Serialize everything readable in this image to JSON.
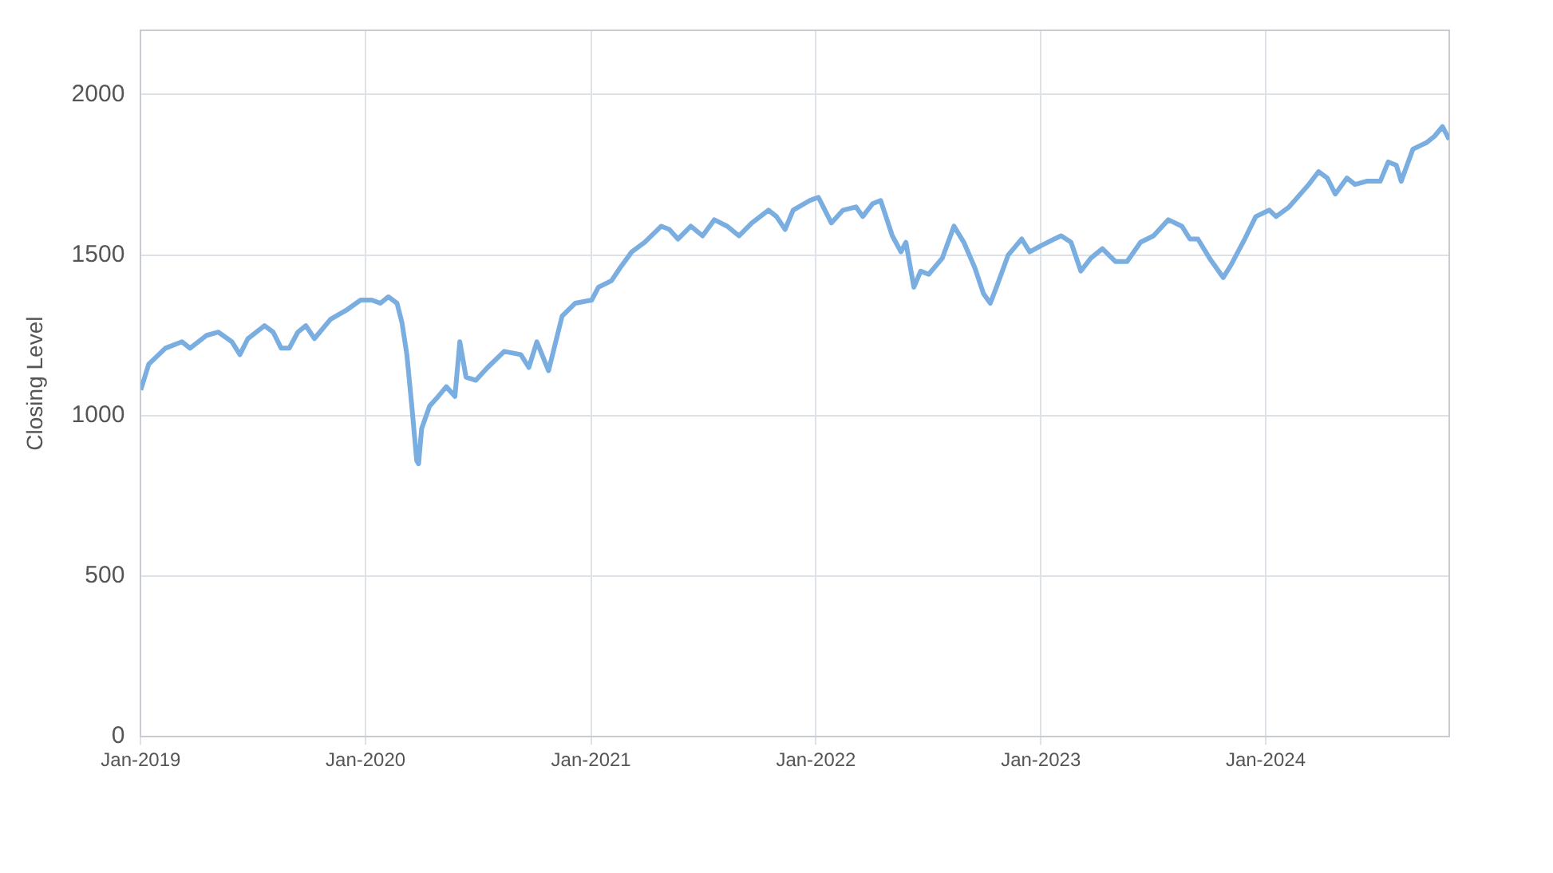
{
  "chart_data": {
    "type": "line",
    "ylabel": "Closing Level",
    "xlim": [
      "2019-01-01",
      "2024-10-25"
    ],
    "xticks": [
      {
        "value": "2019-01",
        "label": "Jan-2019"
      },
      {
        "value": "2020-01",
        "label": "Jan-2020"
      },
      {
        "value": "2021-01",
        "label": "Jan-2021"
      },
      {
        "value": "2022-01",
        "label": "Jan-2022"
      },
      {
        "value": "2023-01",
        "label": "Jan-2023"
      },
      {
        "value": "2024-01",
        "label": "Jan-2024"
      }
    ],
    "ylim": [
      0,
      2200
    ],
    "yticks": [
      0,
      500,
      1000,
      1500,
      2000
    ],
    "grid": true,
    "legend": false,
    "marker": "none",
    "line_style": "solid",
    "x": [
      "2019-01-01",
      "2019-01-14",
      "2019-02-10",
      "2019-03-09",
      "2019-03-22",
      "2019-04-18",
      "2019-05-07",
      "2019-05-29",
      "2019-06-11",
      "2019-06-24",
      "2019-07-21",
      "2019-08-04",
      "2019-08-17",
      "2019-08-30",
      "2019-09-13",
      "2019-09-26",
      "2019-10-10",
      "2019-11-05",
      "2019-12-02",
      "2019-12-24",
      "2020-01-11",
      "2020-01-25",
      "2020-02-07",
      "2020-02-21",
      "2020-02-29",
      "2020-03-08",
      "2020-03-16",
      "2020-03-24",
      "2020-03-27",
      "2020-04-01",
      "2020-04-14",
      "2020-04-28",
      "2020-05-11",
      "2020-05-25",
      "2020-06-02",
      "2020-06-12",
      "2020-06-28",
      "2020-07-17",
      "2020-08-13",
      "2020-09-09",
      "2020-09-22",
      "2020-10-05",
      "2020-10-24",
      "2020-11-15",
      "2020-12-06",
      "2021-01-02",
      "2021-01-13",
      "2021-02-03",
      "2021-02-17",
      "2021-03-08",
      "2021-03-29",
      "2021-04-25",
      "2021-05-08",
      "2021-05-22",
      "2021-06-12",
      "2021-07-01",
      "2021-07-20",
      "2021-08-10",
      "2021-08-29",
      "2021-09-19",
      "2021-10-16",
      "2021-10-29",
      "2021-11-12",
      "2021-11-25",
      "2021-12-22",
      "2022-01-05",
      "2022-01-26",
      "2022-02-14",
      "2022-03-07",
      "2022-03-18",
      "2022-04-03",
      "2022-04-16",
      "2022-05-05",
      "2022-05-19",
      "2022-05-27",
      "2022-06-09",
      "2022-06-20",
      "2022-07-03",
      "2022-07-25",
      "2022-08-13",
      "2022-08-29",
      "2022-09-16",
      "2022-09-30",
      "2022-10-11",
      "2022-10-21",
      "2022-11-09",
      "2022-12-01",
      "2022-12-14",
      "2023-01-02",
      "2023-01-23",
      "2023-02-03",
      "2023-02-19",
      "2023-03-07",
      "2023-03-23",
      "2023-04-11",
      "2023-05-02",
      "2023-05-21",
      "2023-06-12",
      "2023-07-03",
      "2023-07-27",
      "2023-08-18",
      "2023-08-31",
      "2023-09-13",
      "2023-10-02",
      "2023-10-24",
      "2023-11-06",
      "2023-11-28",
      "2023-12-16",
      "2024-01-07",
      "2024-01-18",
      "2024-02-08",
      "2024-03-11",
      "2024-03-27",
      "2024-04-10",
      "2024-04-23",
      "2024-05-12",
      "2024-05-25",
      "2024-06-13",
      "2024-07-05",
      "2024-07-18",
      "2024-07-31",
      "2024-08-08",
      "2024-08-27",
      "2024-09-18",
      "2024-10-01",
      "2024-10-14",
      "2024-10-25"
    ],
    "series": [
      {
        "color": "#7aaee0",
        "values": [
          1080,
          1160,
          1210,
          1230,
          1210,
          1250,
          1260,
          1230,
          1190,
          1240,
          1280,
          1260,
          1210,
          1210,
          1260,
          1280,
          1240,
          1300,
          1330,
          1360,
          1360,
          1350,
          1370,
          1350,
          1290,
          1190,
          1030,
          860,
          850,
          960,
          1030,
          1060,
          1090,
          1060,
          1230,
          1120,
          1110,
          1150,
          1200,
          1190,
          1150,
          1230,
          1140,
          1310,
          1350,
          1360,
          1400,
          1420,
          1460,
          1510,
          1540,
          1590,
          1580,
          1550,
          1590,
          1560,
          1610,
          1590,
          1560,
          1600,
          1640,
          1620,
          1580,
          1640,
          1670,
          1680,
          1600,
          1640,
          1650,
          1620,
          1660,
          1670,
          1560,
          1510,
          1540,
          1400,
          1450,
          1440,
          1490,
          1590,
          1540,
          1460,
          1380,
          1350,
          1400,
          1500,
          1550,
          1510,
          1530,
          1550,
          1560,
          1540,
          1450,
          1490,
          1520,
          1480,
          1480,
          1540,
          1560,
          1610,
          1590,
          1550,
          1550,
          1490,
          1430,
          1470,
          1550,
          1620,
          1640,
          1620,
          1650,
          1720,
          1760,
          1740,
          1690,
          1740,
          1720,
          1730,
          1730,
          1790,
          1780,
          1730,
          1830,
          1850,
          1870,
          1900,
          1860
        ]
      }
    ]
  }
}
